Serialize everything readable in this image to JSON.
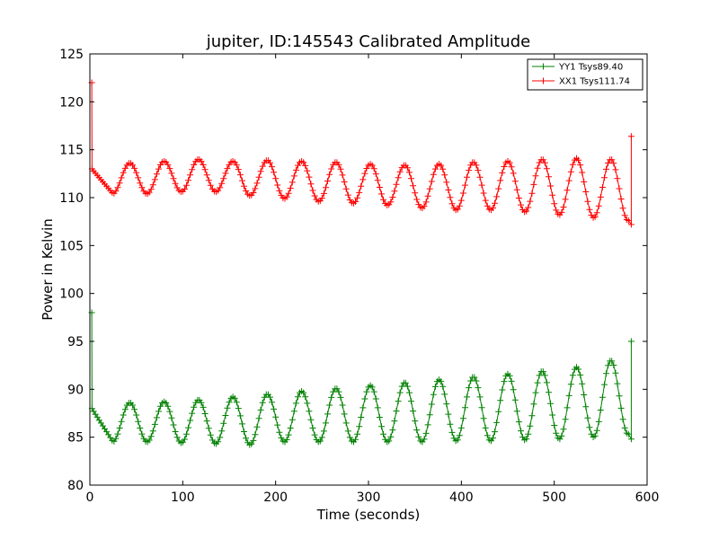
{
  "chart_data": {
    "type": "line",
    "title": "jupiter, ID:145543 Calibrated Amplitude",
    "xlabel": "Time (seconds)",
    "ylabel": "Power in Kelvin",
    "xlim": [
      0,
      600
    ],
    "ylim": [
      80,
      125
    ],
    "xticks": [
      0,
      100,
      200,
      300,
      400,
      500,
      600
    ],
    "yticks": [
      80,
      85,
      90,
      95,
      100,
      105,
      110,
      115,
      120,
      125
    ],
    "grid": false,
    "legend_position": "top-right",
    "marker": "plus",
    "series": [
      {
        "name": "YY1 Tsys89.40",
        "color": "#008000",
        "start_time": 2,
        "end_time": 580,
        "spike": {
          "time": 2,
          "value": 98
        },
        "first_value": 88,
        "period": 37,
        "first_peak_time": 43,
        "peaks": [
          88.6,
          88.7,
          88.9,
          89.2,
          89.5,
          89.8,
          90.1,
          90.4,
          90.7,
          91.0,
          91.3,
          91.6,
          91.9,
          92.3,
          93.0
        ],
        "troughs": [
          84.5,
          84.4,
          84.3,
          84.2,
          84.5,
          84.5,
          84.5,
          84.5,
          84.5,
          84.6,
          84.6,
          84.7,
          84.8,
          85.0,
          85.3
        ],
        "end_jump": {
          "time": 583,
          "values": [
            84.8,
            95.0
          ]
        }
      },
      {
        "name": "XX1 Tsys111.74",
        "color": "#ff0000",
        "start_time": 2,
        "end_time": 580,
        "spike": {
          "time": 2,
          "value": 122
        },
        "first_value": 113,
        "period": 37,
        "first_peak_time": 43,
        "peaks": [
          113.6,
          113.8,
          114.0,
          113.8,
          113.9,
          113.8,
          113.7,
          113.5,
          113.4,
          113.5,
          113.7,
          113.8,
          114.0,
          114.1,
          114.0
        ],
        "troughs": [
          110.4,
          110.6,
          110.6,
          110.2,
          109.9,
          109.6,
          109.4,
          109.2,
          108.9,
          108.7,
          108.7,
          108.5,
          108.2,
          107.9,
          107.6
        ],
        "end_jump": {
          "time": 583,
          "values": [
            107.2,
            116.4
          ]
        }
      }
    ]
  }
}
